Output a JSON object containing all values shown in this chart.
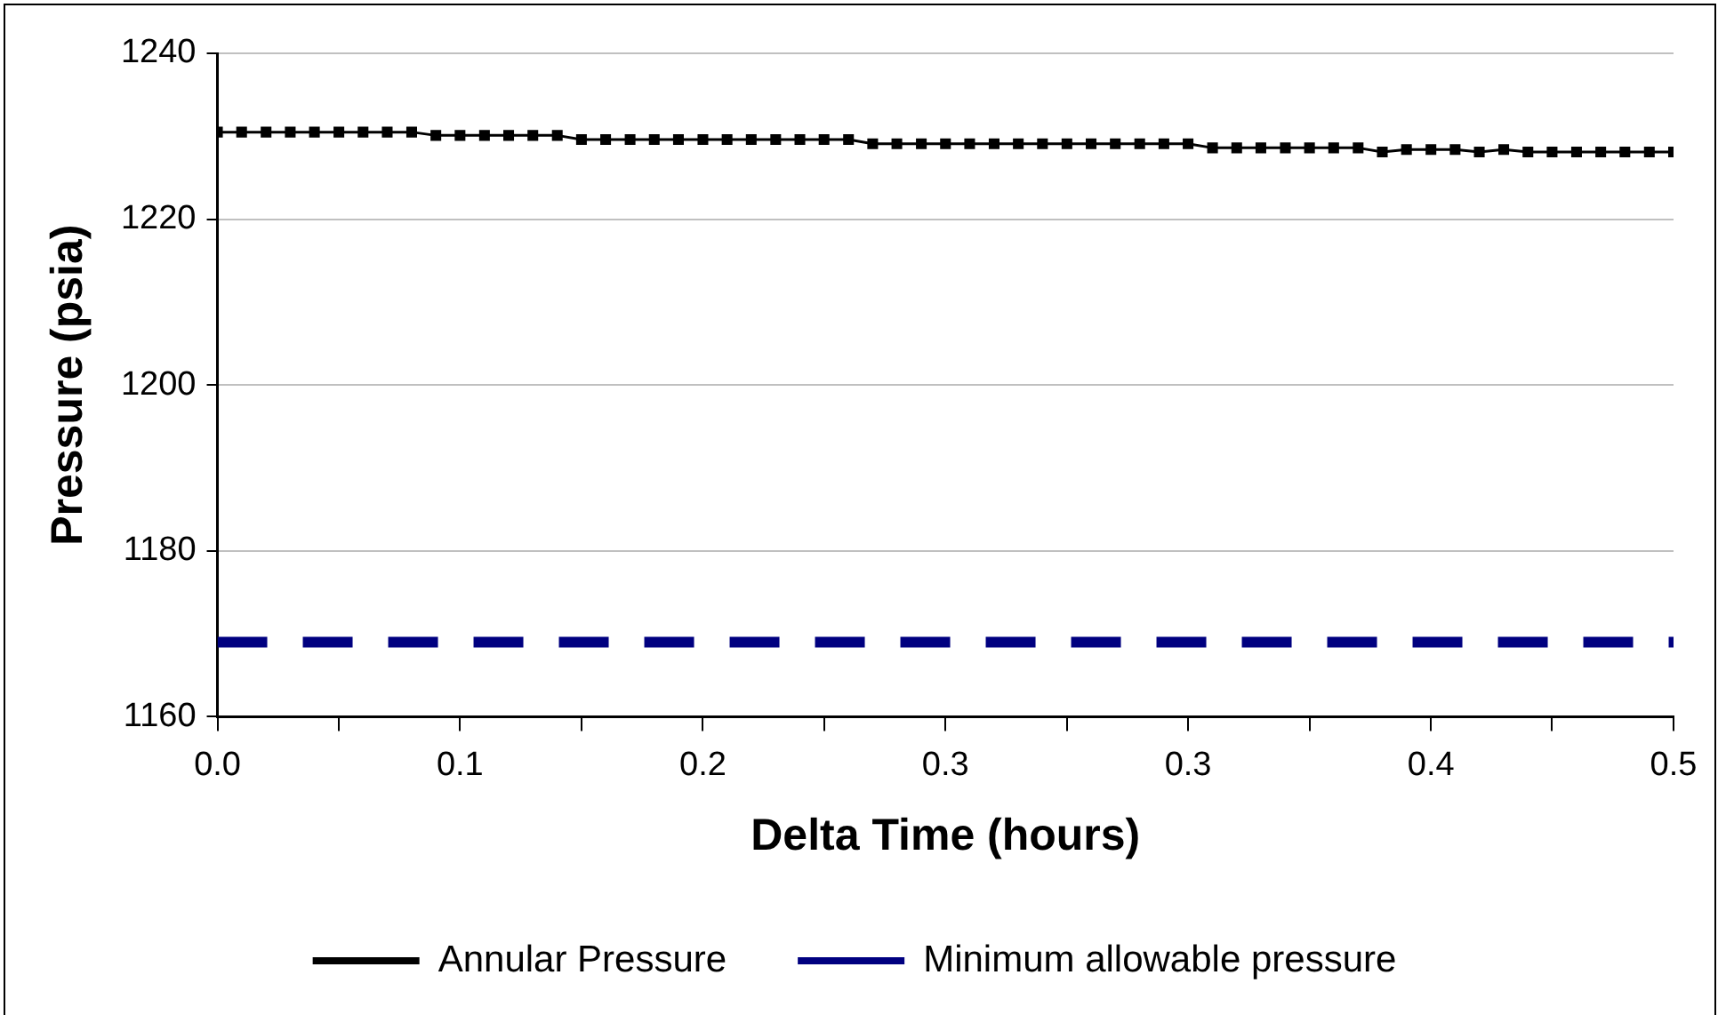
{
  "chart_data": {
    "type": "line",
    "xlabel": "Delta Time (hours)",
    "ylabel": "Pressure (psia)",
    "x": [
      0,
      0.0083,
      0.0167,
      0.025,
      0.0333,
      0.0417,
      0.05,
      0.0583,
      0.0667,
      0.075,
      0.0833,
      0.0917,
      0.1,
      0.1083,
      0.1167,
      0.125,
      0.1333,
      0.1417,
      0.15,
      0.1583,
      0.1667,
      0.175,
      0.1833,
      0.1917,
      0.2,
      0.2083,
      0.2167,
      0.225,
      0.2333,
      0.2417,
      0.25,
      0.2583,
      0.2667,
      0.275,
      0.2833,
      0.2917,
      0.3,
      0.3083,
      0.3167,
      0.325,
      0.3333,
      0.3417,
      0.35,
      0.3583,
      0.3667,
      0.375,
      0.3833,
      0.3917,
      0.4,
      0.4083,
      0.4167,
      0.425,
      0.4333,
      0.4417,
      0.45,
      0.4583,
      0.4667,
      0.475,
      0.4833,
      0.4917,
      0.5
    ],
    "series": [
      {
        "name": "Annular Pressure",
        "color": "#000000",
        "marker": "square",
        "line_style": "solid",
        "values": [
          1230.5,
          1230.5,
          1230.5,
          1230.5,
          1230.5,
          1230.5,
          1230.5,
          1230.5,
          1230.5,
          1230.1,
          1230.1,
          1230.1,
          1230.1,
          1230.1,
          1230.1,
          1229.6,
          1229.6,
          1229.6,
          1229.6,
          1229.6,
          1229.6,
          1229.6,
          1229.6,
          1229.6,
          1229.6,
          1229.6,
          1229.6,
          1229.1,
          1229.1,
          1229.1,
          1229.1,
          1229.1,
          1229.1,
          1229.1,
          1229.1,
          1229.1,
          1229.1,
          1229.1,
          1229.1,
          1229.1,
          1229.1,
          1228.6,
          1228.6,
          1228.6,
          1228.6,
          1228.6,
          1228.6,
          1228.6,
          1228.1,
          1228.4,
          1228.4,
          1228.4,
          1228.1,
          1228.4,
          1228.1,
          1228.1,
          1228.1,
          1228.1,
          1228.1,
          1228.1,
          1228.1
        ]
      },
      {
        "name": "Minimum allowable pressure",
        "color": "#000080",
        "marker": "none",
        "line_style": "dashed",
        "x": [
          0,
          0.5
        ],
        "values": [
          1169,
          1169
        ]
      }
    ],
    "xlim": [
      0,
      0.5
    ],
    "xticks": [
      {
        "value": 0,
        "label": "0.0"
      },
      {
        "value": 0.0417,
        "label": null
      },
      {
        "value": 0.0833,
        "label": "0.1"
      },
      {
        "value": 0.125,
        "label": null
      },
      {
        "value": 0.1667,
        "label": "0.2"
      },
      {
        "value": 0.2083,
        "label": null
      },
      {
        "value": 0.25,
        "label": "0.3"
      },
      {
        "value": 0.2917,
        "label": null
      },
      {
        "value": 0.3333,
        "label": "0.3"
      },
      {
        "value": 0.375,
        "label": null
      },
      {
        "value": 0.4167,
        "label": "0.4"
      },
      {
        "value": 0.4583,
        "label": null
      },
      {
        "value": 0.5,
        "label": "0.5"
      }
    ],
    "ylim": [
      1160,
      1240
    ],
    "yticks": [
      1160,
      1180,
      1200,
      1220,
      1240
    ],
    "grid": "y",
    "legend": "bottom"
  }
}
